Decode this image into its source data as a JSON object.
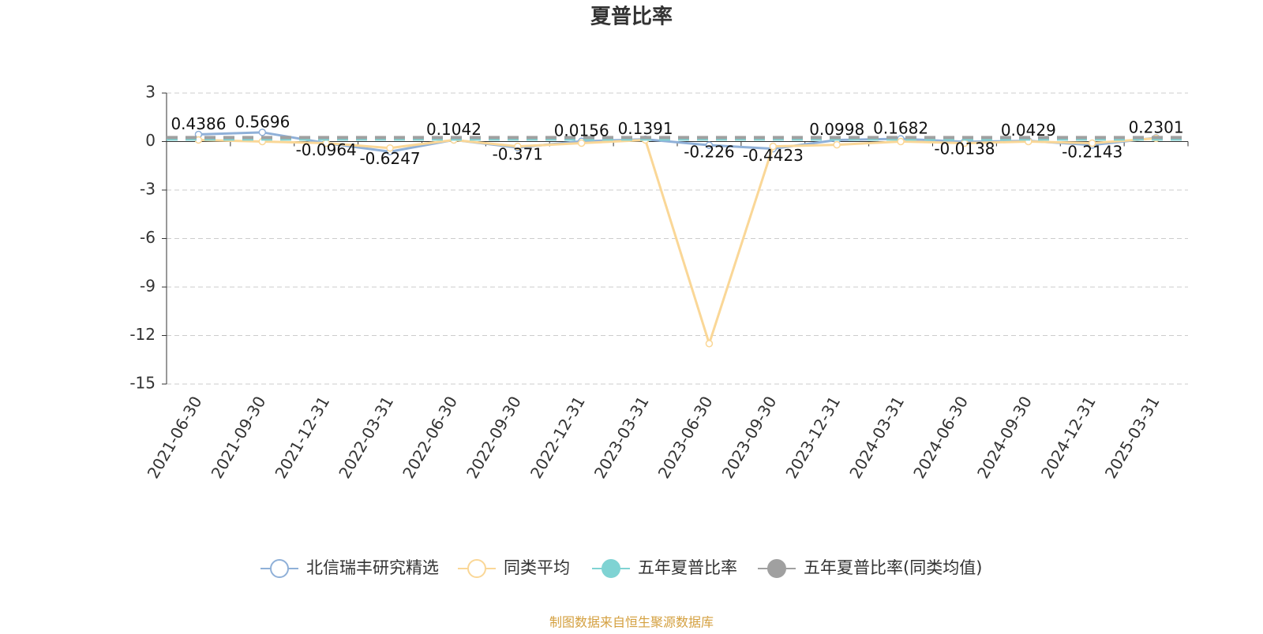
{
  "chart_data": {
    "type": "line",
    "title": "夏普比率",
    "categories": [
      "2021-06-30",
      "2021-09-30",
      "2021-12-31",
      "2022-03-31",
      "2022-06-30",
      "2022-09-30",
      "2022-12-31",
      "2023-03-31",
      "2023-06-30",
      "2023-09-30",
      "2023-12-31",
      "2024-03-31",
      "2024-06-30",
      "2024-09-30",
      "2024-12-31",
      "2025-03-31"
    ],
    "series": [
      {
        "name": "北信瑞丰研究精选",
        "color": "#8fb0d8",
        "values": [
          0.4386,
          0.5696,
          -0.0964,
          -0.6247,
          0.1042,
          -0.371,
          0.0156,
          0.1391,
          -0.226,
          -0.4423,
          0.0998,
          0.1682,
          -0.0138,
          0.0429,
          -0.2143,
          0.2301
        ]
      },
      {
        "name": "同类平均",
        "color": "#fad797",
        "values": [
          0.1,
          0.0,
          -0.1,
          -0.4,
          0.1,
          -0.3,
          -0.1,
          0.1,
          -12.5,
          -0.3,
          -0.2,
          0.0,
          -0.1,
          0.0,
          -0.1,
          0.2
        ]
      },
      {
        "name": "五年夏普比率",
        "color": "#7fd3d3",
        "value": 0.15
      },
      {
        "name": "五年夏普比率(同类均值)",
        "color": "#a0a0a0",
        "value": 0.25
      }
    ],
    "ylim": [
      -15,
      3
    ],
    "yticks": [
      3,
      0,
      -3,
      -6,
      -9,
      -12,
      -15
    ],
    "grid": true,
    "source": "制图数据来自恒生聚源数据库"
  }
}
